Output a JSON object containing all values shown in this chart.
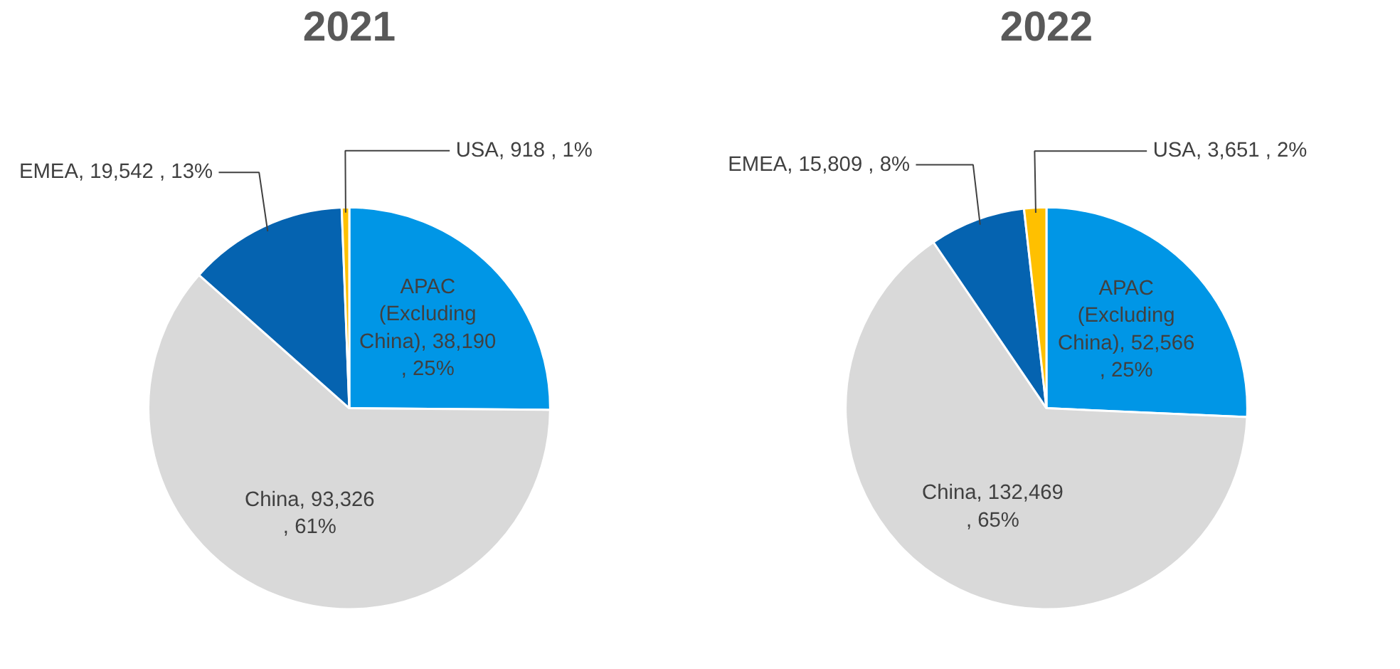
{
  "chart_data": [
    {
      "type": "pie",
      "title": "2021",
      "categories": [
        "APAC (Excluding China)",
        "China",
        "EMEA",
        "USA"
      ],
      "values": [
        38190,
        93326,
        19542,
        918
      ],
      "colors": [
        "#0096e6",
        "#d9d9d9",
        "#0563b0",
        "#ffc000"
      ],
      "value_labels": [
        "38,190 , 25%",
        "93,326 , 61%",
        "19,542 , 13%",
        "918 , 1%"
      ]
    },
    {
      "type": "pie",
      "title": "2022",
      "categories": [
        "APAC (Excluding China)",
        "China",
        "EMEA",
        "USA"
      ],
      "values": [
        52566,
        132469,
        15809,
        3651
      ],
      "colors": [
        "#0096e6",
        "#d9d9d9",
        "#0563b0",
        "#ffc000"
      ],
      "value_labels": [
        "52,566 , 25%",
        "132,469 , 65%",
        "15,809 , 8%",
        "3,651 , 2%"
      ]
    }
  ]
}
